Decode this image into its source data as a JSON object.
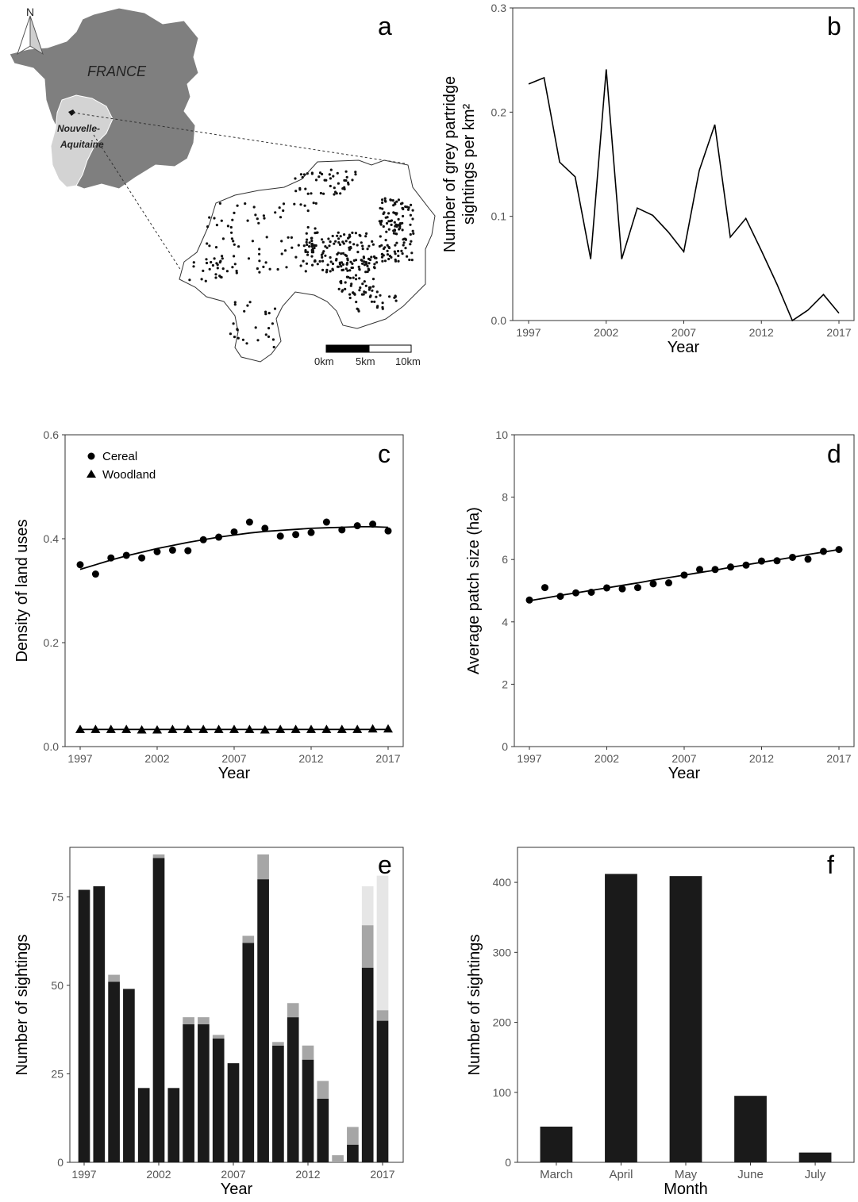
{
  "panel_a": {
    "letter": "a",
    "north_label": "N",
    "country_label": "FRANCE",
    "region_label_line1": "Nouvelle-",
    "region_label_line2": "Aquitaine",
    "scale_labels": [
      "0km",
      "5km",
      "10km"
    ],
    "colors": {
      "france": "#7f7f7f",
      "region": "#d3d3d3",
      "dots": "#111111"
    }
  },
  "chart_data": [
    {
      "panel": "b",
      "type": "line",
      "ylabel_line1": "Number of grey partridge",
      "ylabel_line2": "sightings per km²",
      "xlabel": "Year",
      "xlim": [
        1997,
        2017
      ],
      "ylim": [
        0,
        0.3
      ],
      "xticks": [
        1997,
        2002,
        2007,
        2012,
        2017
      ],
      "yticks": [
        "0.0",
        "0.1",
        "0.2",
        "0.3"
      ],
      "ytick_values": [
        0,
        0.1,
        0.2,
        0.3
      ],
      "x": [
        1997,
        1998,
        1999,
        2000,
        2001,
        2002,
        2003,
        2004,
        2005,
        2006,
        2007,
        2008,
        2009,
        2010,
        2011,
        2012,
        2013,
        2014,
        2015,
        2016,
        2017
      ],
      "y": [
        0.227,
        0.233,
        0.152,
        0.138,
        0.059,
        0.241,
        0.059,
        0.108,
        0.101,
        0.085,
        0.066,
        0.144,
        0.188,
        0.08,
        0.098,
        0.067,
        0.035,
        0.0,
        0.01,
        0.025,
        0.007
      ],
      "grid": false
    },
    {
      "panel": "c",
      "type": "scatter",
      "xlabel": "Year",
      "ylabel": "Density of land uses",
      "xlim": [
        1997,
        2017
      ],
      "ylim": [
        0,
        0.6
      ],
      "xticks": [
        1997,
        2002,
        2007,
        2012,
        2017
      ],
      "yticks": [
        "0.0",
        "0.2",
        "0.4",
        "0.6"
      ],
      "ytick_values": [
        0,
        0.2,
        0.4,
        0.6
      ],
      "legend_position": "top-left",
      "series": [
        {
          "name": "Cereal",
          "marker": "circle",
          "x": [
            1997,
            1998,
            1999,
            2000,
            2001,
            2002,
            2003,
            2004,
            2005,
            2006,
            2007,
            2008,
            2009,
            2010,
            2011,
            2012,
            2013,
            2014,
            2015,
            2016,
            2017
          ],
          "y": [
            0.35,
            0.332,
            0.363,
            0.368,
            0.363,
            0.375,
            0.378,
            0.377,
            0.398,
            0.403,
            0.413,
            0.432,
            0.42,
            0.405,
            0.408,
            0.412,
            0.432,
            0.417,
            0.425,
            0.428,
            0.415
          ],
          "fit": [
            0.341,
            0.35,
            0.359,
            0.367,
            0.374,
            0.381,
            0.387,
            0.393,
            0.398,
            0.403,
            0.407,
            0.411,
            0.414,
            0.416,
            0.418,
            0.42,
            0.421,
            0.422,
            0.423,
            0.423,
            0.422
          ]
        },
        {
          "name": "Woodland",
          "marker": "triangle",
          "x": [
            1997,
            1998,
            1999,
            2000,
            2001,
            2002,
            2003,
            2004,
            2005,
            2006,
            2007,
            2008,
            2009,
            2010,
            2011,
            2012,
            2013,
            2014,
            2015,
            2016,
            2017
          ],
          "y": [
            0.033,
            0.033,
            0.033,
            0.033,
            0.032,
            0.032,
            0.033,
            0.033,
            0.033,
            0.033,
            0.033,
            0.033,
            0.032,
            0.033,
            0.033,
            0.033,
            0.033,
            0.033,
            0.033,
            0.034,
            0.034
          ],
          "fit": [
            0.033,
            0.033,
            0.033,
            0.033,
            0.033,
            0.033,
            0.033,
            0.033,
            0.033,
            0.033,
            0.033,
            0.033,
            0.033,
            0.033,
            0.033,
            0.033,
            0.033,
            0.033,
            0.033,
            0.033,
            0.033
          ]
        }
      ],
      "grid": false
    },
    {
      "panel": "d",
      "type": "scatter",
      "xlabel": "Year",
      "ylabel": "Average patch size (ha)",
      "xlim": [
        1997,
        2017
      ],
      "ylim": [
        0,
        10
      ],
      "xticks": [
        1997,
        2002,
        2007,
        2012,
        2017
      ],
      "yticks": [
        "0",
        "2",
        "4",
        "6",
        "8",
        "10"
      ],
      "ytick_values": [
        0,
        2,
        4,
        6,
        8,
        10
      ],
      "x": [
        1997,
        1998,
        1999,
        2000,
        2001,
        2002,
        2003,
        2004,
        2005,
        2006,
        2007,
        2008,
        2009,
        2010,
        2011,
        2012,
        2013,
        2014,
        2015,
        2016,
        2017
      ],
      "y": [
        4.7,
        5.1,
        4.82,
        4.93,
        4.95,
        5.09,
        5.06,
        5.1,
        5.22,
        5.25,
        5.5,
        5.68,
        5.68,
        5.76,
        5.82,
        5.95,
        5.96,
        6.07,
        6.01,
        6.26,
        6.32
      ],
      "fit": [
        4.68,
        4.76,
        4.85,
        4.93,
        5.01,
        5.09,
        5.17,
        5.25,
        5.34,
        5.42,
        5.5,
        5.58,
        5.66,
        5.75,
        5.83,
        5.91,
        5.99,
        6.07,
        6.16,
        6.24,
        6.32
      ],
      "grid": false
    },
    {
      "panel": "e",
      "type": "bar",
      "stacked": true,
      "xlabel": "Year",
      "ylabel": "Number of sightings",
      "xlim": [
        1997,
        2017
      ],
      "ylim": [
        0,
        89
      ],
      "xticks": [
        1997,
        2002,
        2007,
        2012,
        2017
      ],
      "yticks": [
        "0",
        "25",
        "50",
        "75"
      ],
      "ytick_values": [
        0,
        25,
        50,
        75
      ],
      "categories": [
        1997,
        1998,
        1999,
        2000,
        2001,
        2002,
        2003,
        2004,
        2005,
        2006,
        2007,
        2008,
        2009,
        2010,
        2011,
        2012,
        2013,
        2014,
        2015,
        2016,
        2017
      ],
      "series": [
        {
          "color": "#1a1a1a",
          "values": [
            77,
            78,
            51,
            49,
            21,
            86,
            21,
            39,
            39,
            35,
            28,
            62,
            80,
            33,
            41,
            29,
            18,
            0,
            5,
            55,
            40
          ]
        },
        {
          "color": "#a6a6a6",
          "values": [
            0,
            0,
            2,
            0,
            0,
            1,
            0,
            2,
            2,
            1,
            0,
            2,
            7,
            1,
            4,
            4,
            5,
            2,
            5,
            12,
            3
          ]
        },
        {
          "color": "#e6e6e6",
          "values": [
            0,
            0,
            0,
            0,
            0,
            0,
            0,
            0,
            0,
            0,
            0,
            0,
            0,
            0,
            0,
            0,
            0,
            0,
            0,
            11,
            38
          ]
        }
      ],
      "grid": false
    },
    {
      "panel": "f",
      "type": "bar",
      "xlabel": "Month",
      "ylabel": "Number of sightings",
      "ylim": [
        0,
        450
      ],
      "yticks": [
        "0",
        "100",
        "200",
        "300",
        "400"
      ],
      "ytick_values": [
        0,
        100,
        200,
        300,
        400
      ],
      "categories": [
        "March",
        "April",
        "May",
        "June",
        "July"
      ],
      "values": [
        51,
        412,
        409,
        95,
        14
      ],
      "bar_color": "#1a1a1a",
      "grid": false
    }
  ]
}
